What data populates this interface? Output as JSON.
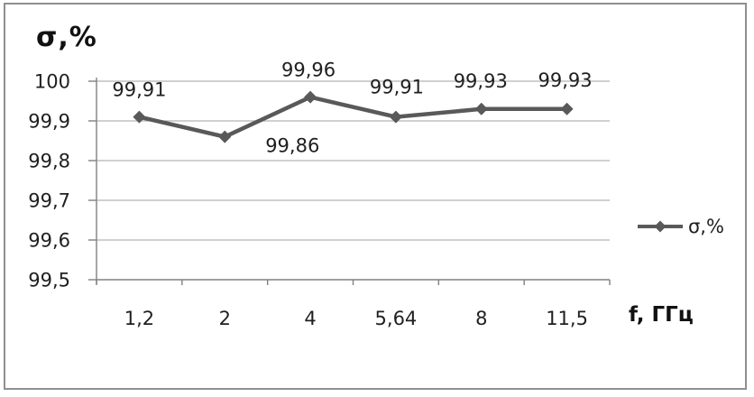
{
  "chart": {
    "title": "σ,%",
    "x_axis_title": "f, ГГц",
    "legend_label": "σ,%"
  },
  "chart_data": {
    "type": "line",
    "title": "σ,%",
    "xlabel": "f, ГГц",
    "ylabel": "σ,%",
    "categories": [
      "1,2",
      "2",
      "4",
      "5,64",
      "8",
      "11,5"
    ],
    "series": [
      {
        "name": "σ,%",
        "values": [
          99.91,
          99.86,
          99.96,
          99.91,
          99.93,
          99.93
        ]
      }
    ],
    "point_labels": [
      "99,91",
      "99,86",
      "99,96",
      "99,91",
      "99,93",
      "99,93"
    ],
    "y_ticks": [
      {
        "value": 100,
        "label": "100"
      },
      {
        "value": 99.9,
        "label": "99,9"
      },
      {
        "value": 99.8,
        "label": "99,8"
      },
      {
        "value": 99.7,
        "label": "99,7"
      },
      {
        "value": 99.6,
        "label": "99,6"
      },
      {
        "value": 99.5,
        "label": "99,5"
      }
    ],
    "ylim": [
      99.5,
      100
    ],
    "grid": true,
    "legend_position": "right",
    "marker": "diamond",
    "colors": {
      "series": "#595959",
      "gridline": "#b3b3b3",
      "axis": "#808080",
      "text": "#1f1f1f",
      "frame_border": "#8f8f8f"
    }
  }
}
